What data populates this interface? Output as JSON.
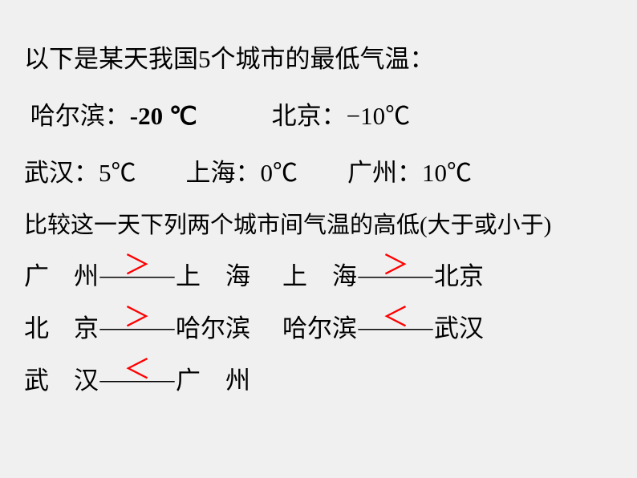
{
  "title": "以下是某天我国5个城市的最低气温：",
  "cities_data": {
    "harbin_label": "哈尔滨：",
    "harbin_temp": "-20 ℃",
    "beijing_label": "北京：",
    "beijing_temp": "−10℃",
    "wuhan_label": "武汉：",
    "wuhan_temp": "5℃",
    "shanghai_label": "上海：",
    "shanghai_temp": "0℃",
    "guangzhou_label": "广州：",
    "guangzhou_temp": "10℃"
  },
  "compare_title": "比较这一天下列两个城市间气温的高低(大于或小于)",
  "dash": "———",
  "rows": [
    {
      "left_city1": "广　州",
      "left_symbol": "＞",
      "left_city2": "上　海",
      "right_city1": "上　海",
      "right_symbol": "＞",
      "right_city2": "北京"
    },
    {
      "left_city1": "北　京",
      "left_symbol": "＞",
      "left_city2": "哈尔滨",
      "right_city1": "哈尔滨",
      "right_symbol": "＜",
      "right_city2": "武汉"
    },
    {
      "left_city1": "武　汉",
      "left_symbol": "＜",
      "left_city2": "广　州",
      "right_city1": "",
      "right_symbol": "",
      "right_city2": ""
    }
  ],
  "colors": {
    "background": "#f0f0f0",
    "text": "#000000",
    "symbol": "#ff0000"
  }
}
